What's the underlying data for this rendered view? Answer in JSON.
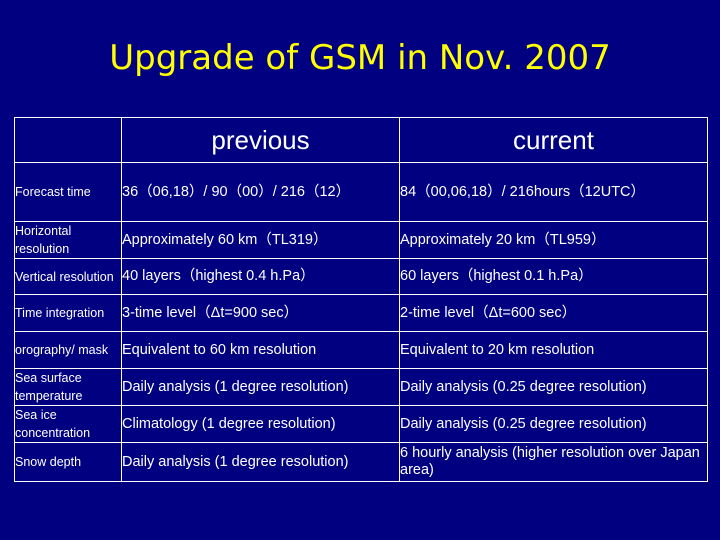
{
  "slide": {
    "title": "Upgrade of GSM in Nov. 2007",
    "colors": {
      "background": "#000080",
      "title": "#ffff00",
      "text": "#ffffff",
      "border": "#ffffff"
    }
  },
  "table": {
    "headers": {
      "corner": "",
      "previous": "previous",
      "current": "current"
    },
    "rows": [
      {
        "label": "Forecast time",
        "previous": "36（06,18）/ 90（00）/ 216（12）",
        "current": "84（00,06,18）/ 216hours（12UTC）"
      },
      {
        "label": "Horizontal resolution",
        "previous": "Approximately 60 km（TL319）",
        "current": "Approximately 20 km（TL959）"
      },
      {
        "label": "Vertical resolution",
        "previous": "40 layers（highest 0.4 h.Pa）",
        "current": "60 layers（highest 0.1 h.Pa）"
      },
      {
        "label": "Time integration",
        "previous": "3-time level（Δt=900 sec）",
        "current": "2-time level（Δt=600 sec）"
      },
      {
        "label": "orography/ mask",
        "previous": "Equivalent to 60 km resolution",
        "current": "Equivalent to 20 km resolution"
      },
      {
        "label": "Sea surface temperature",
        "previous": "Daily analysis (1 degree resolution)",
        "current": "Daily analysis (0.25 degree resolution)"
      },
      {
        "label": "Sea ice concentration",
        "previous": "Climatology (1 degree resolution)",
        "current": "Daily analysis (0.25 degree resolution)"
      },
      {
        "label": "Snow depth",
        "previous": "Daily analysis (1 degree resolution)",
        "current": "6 hourly analysis (higher resolution over Japan area)"
      }
    ]
  }
}
